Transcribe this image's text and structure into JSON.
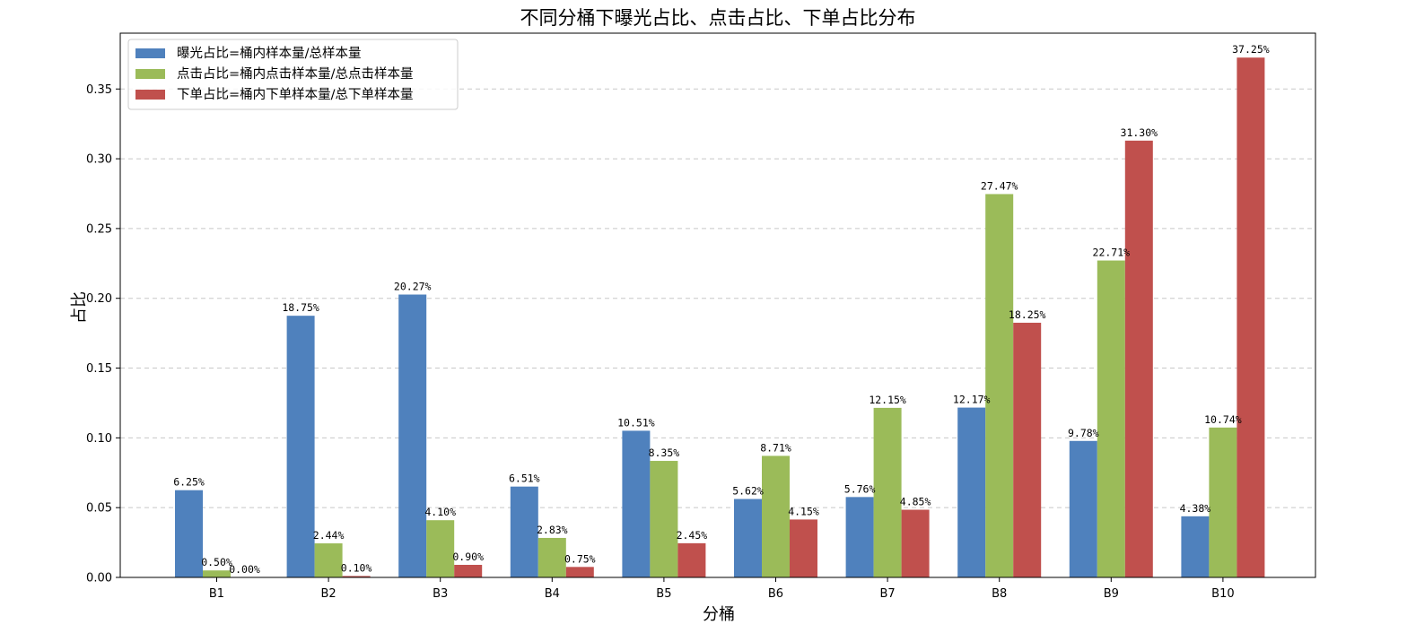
{
  "chart_data": {
    "type": "bar",
    "title": "不同分桶下曝光占比、点击占比、下单占比分布",
    "xlabel": "分桶",
    "ylabel": "占比",
    "categories": [
      "B1",
      "B2",
      "B3",
      "B4",
      "B5",
      "B6",
      "B7",
      "B8",
      "B9",
      "B10"
    ],
    "ylim": [
      0,
      0.39
    ],
    "yticks": [
      0.0,
      0.05,
      0.1,
      0.15,
      0.2,
      0.25,
      0.3,
      0.35
    ],
    "ytick_labels": [
      "0.00",
      "0.05",
      "0.10",
      "0.15",
      "0.20",
      "0.25",
      "0.30",
      "0.35"
    ],
    "grid": "y-dashed",
    "legend_position": "top-left",
    "series": [
      {
        "name": "曝光占比=桶内样本量/总样本量",
        "color": "#4f81bd",
        "values": [
          0.0625,
          0.1875,
          0.2027,
          0.0651,
          0.1051,
          0.0562,
          0.0576,
          0.1217,
          0.0978,
          0.0438
        ],
        "labels": [
          "6.25%",
          "18.75%",
          "20.27%",
          "6.51%",
          "10.51%",
          "5.62%",
          "5.76%",
          "12.17%",
          "9.78%",
          "4.38%"
        ]
      },
      {
        "name": "点击占比=桶内点击样本量/总点击样本量",
        "color": "#9bbb59",
        "values": [
          0.005,
          0.0244,
          0.041,
          0.0283,
          0.0835,
          0.0871,
          0.1215,
          0.2747,
          0.2271,
          0.1074
        ],
        "labels": [
          "0.50%",
          "2.44%",
          "4.10%",
          "2.83%",
          "8.35%",
          "8.71%",
          "12.15%",
          "27.47%",
          "22.71%",
          "10.74%"
        ]
      },
      {
        "name": "下单占比=桶内下单样本量/总下单样本量",
        "color": "#c0504d",
        "values": [
          0.0,
          0.001,
          0.009,
          0.0075,
          0.0245,
          0.0415,
          0.0485,
          0.1825,
          0.313,
          0.3725
        ],
        "labels": [
          "0.00%",
          "0.10%",
          "0.90%",
          "0.75%",
          "2.45%",
          "4.15%",
          "4.85%",
          "18.25%",
          "31.30%",
          "37.25%"
        ]
      }
    ]
  }
}
